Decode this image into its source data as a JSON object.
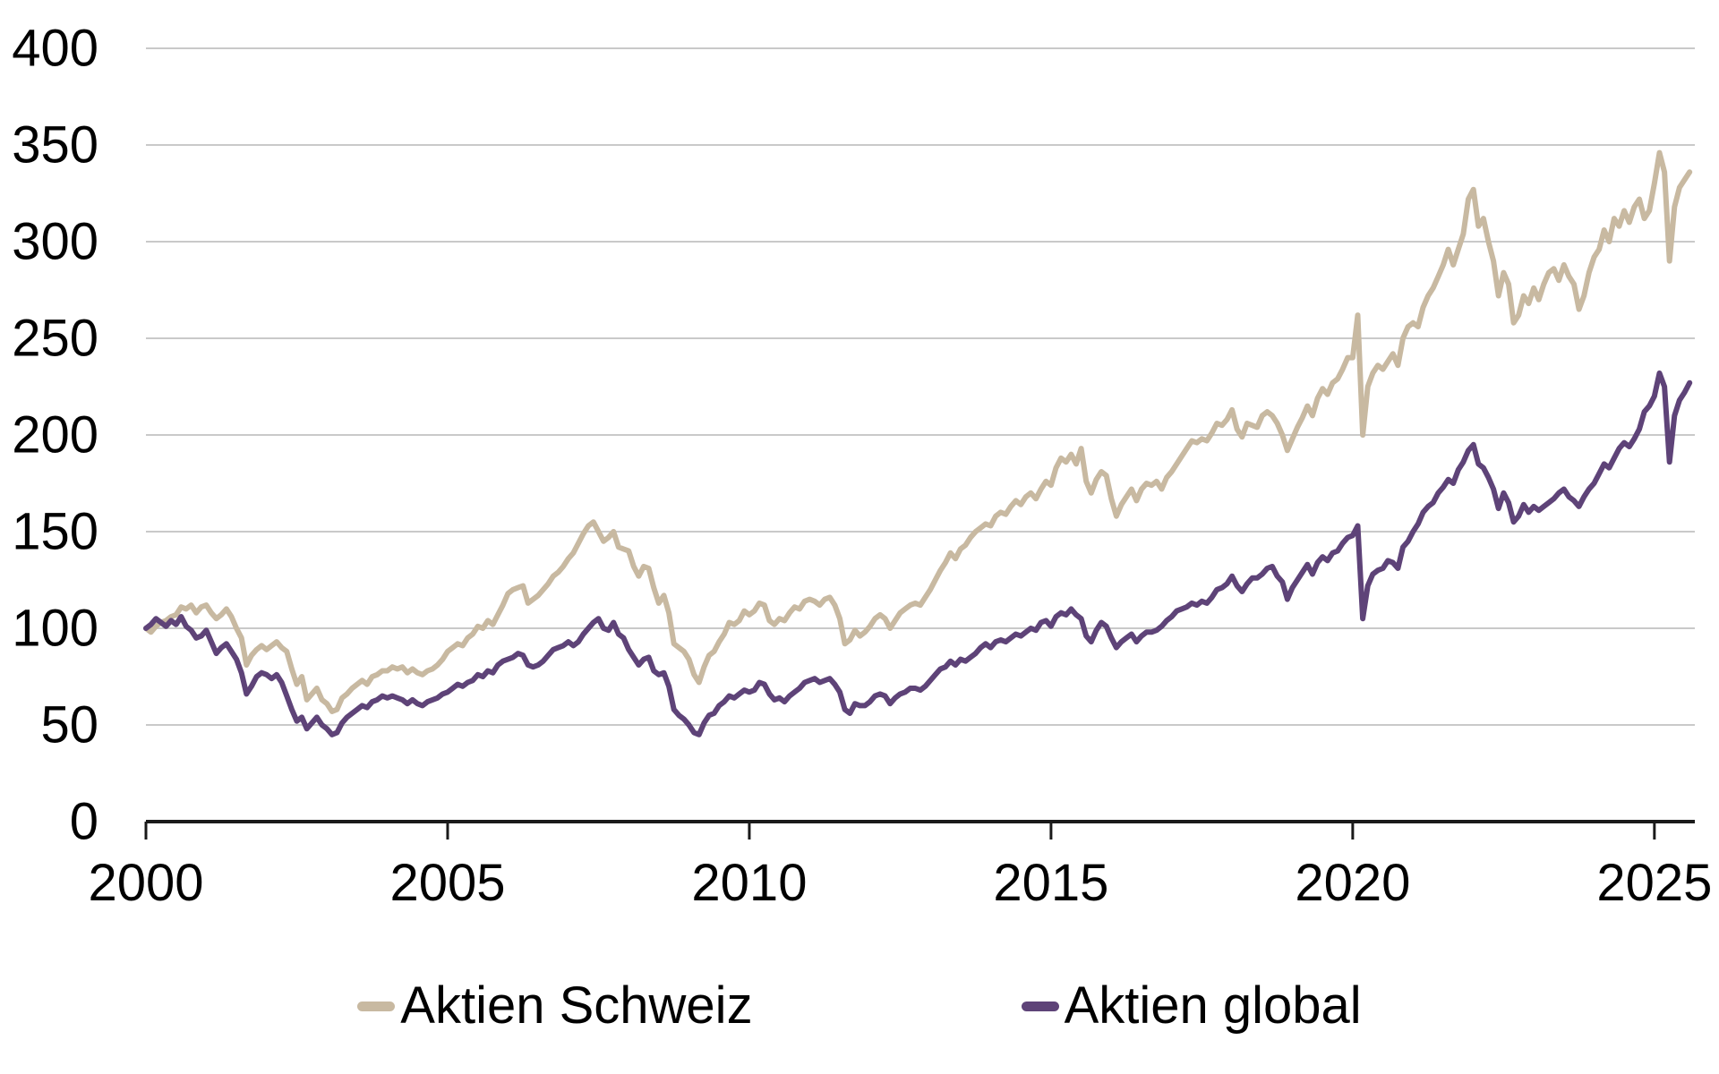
{
  "chart_data": {
    "type": "line",
    "title": "",
    "xlabel": "",
    "ylabel": "",
    "x_axis": {
      "min": 2000,
      "max": 2025.67,
      "ticks": [
        2000,
        2005,
        2010,
        2015,
        2020,
        2025
      ]
    },
    "y_axis": {
      "min": 0,
      "max": 400,
      "ticks": [
        0,
        50,
        100,
        150,
        200,
        250,
        300,
        350,
        400
      ],
      "gridlines": true
    },
    "x_start_year": 2000,
    "points_per_year": 12,
    "legend_position": "bottom",
    "colors": {
      "grid": "#c9c9c9",
      "axis": "#1a1a1a",
      "text": "#000000",
      "background": "#ffffff"
    },
    "series": [
      {
        "name": "Aktien Schweiz",
        "color": "#c8b9a1",
        "values": [
          100,
          98,
          101,
          103,
          104,
          106,
          107,
          111,
          110,
          112,
          108,
          111,
          112,
          108,
          105,
          107,
          110,
          106,
          100,
          95,
          81,
          86,
          89,
          91,
          89,
          91,
          93,
          90,
          88,
          79,
          71,
          75,
          63,
          66,
          69,
          63,
          61,
          57,
          58,
          64,
          66,
          69,
          71,
          73,
          71,
          75,
          76,
          78,
          78,
          80,
          79,
          80,
          77,
          79,
          77,
          76,
          78,
          79,
          81,
          84,
          88,
          90,
          92,
          91,
          95,
          97,
          101,
          100,
          104,
          102,
          107,
          112,
          118,
          120,
          121,
          122,
          113,
          115,
          117,
          120,
          123,
          127,
          129,
          132,
          136,
          139,
          144,
          149,
          153,
          155,
          150,
          145,
          147,
          150,
          142,
          141,
          140,
          132,
          127,
          132,
          131,
          121,
          113,
          117,
          108,
          92,
          90,
          88,
          84,
          76,
          72,
          80,
          86,
          88,
          93,
          97,
          103,
          102,
          104,
          109,
          107,
          109,
          113,
          112,
          104,
          102,
          105,
          104,
          108,
          111,
          110,
          114,
          115,
          114,
          112,
          115,
          116,
          112,
          105,
          92,
          94,
          99,
          96,
          98,
          101,
          105,
          107,
          105,
          100,
          104,
          108,
          110,
          112,
          113,
          112,
          116,
          120,
          125,
          130,
          134,
          139,
          136,
          141,
          143,
          147,
          150,
          152,
          154,
          153,
          158,
          160,
          159,
          163,
          166,
          164,
          168,
          170,
          167,
          172,
          176,
          174,
          183,
          188,
          186,
          190,
          185,
          193,
          176,
          170,
          177,
          181,
          179,
          167,
          158,
          164,
          168,
          172,
          166,
          172,
          175,
          174,
          176,
          172,
          178,
          181,
          185,
          189,
          193,
          197,
          196,
          198,
          197,
          201,
          206,
          205,
          208,
          213,
          203,
          199,
          206,
          205,
          204,
          210,
          212,
          210,
          206,
          200,
          192,
          198,
          204,
          209,
          215,
          210,
          219,
          224,
          221,
          227,
          229,
          234,
          240,
          240,
          262,
          200,
          225,
          232,
          236,
          234,
          238,
          242,
          236,
          250,
          256,
          258,
          256,
          266,
          272,
          276,
          282,
          288,
          296,
          288,
          296,
          304,
          322,
          327,
          308,
          312,
          300,
          290,
          272,
          284,
          278,
          258,
          262,
          272,
          268,
          276,
          270,
          278,
          284,
          286,
          280,
          288,
          282,
          278,
          265,
          272,
          284,
          292,
          296,
          306,
          300,
          312,
          308,
          316,
          310,
          318,
          322,
          312,
          316,
          330,
          346,
          336,
          290,
          318,
          328,
          332,
          336
        ]
      },
      {
        "name": "Aktien global",
        "color": "#5e4378",
        "values": [
          100,
          102,
          105,
          103,
          101,
          104,
          102,
          106,
          101,
          99,
          95,
          96,
          99,
          93,
          87,
          90,
          92,
          88,
          84,
          77,
          66,
          70,
          75,
          77,
          76,
          74,
          76,
          72,
          65,
          58,
          52,
          54,
          48,
          51,
          54,
          50,
          48,
          45,
          46,
          51,
          54,
          56,
          58,
          60,
          59,
          62,
          63,
          65,
          64,
          65,
          64,
          63,
          61,
          63,
          61,
          60,
          62,
          63,
          64,
          66,
          67,
          69,
          71,
          70,
          72,
          73,
          76,
          75,
          78,
          77,
          81,
          83,
          84,
          85,
          87,
          86,
          81,
          80,
          81,
          83,
          86,
          89,
          90,
          91,
          93,
          91,
          93,
          97,
          100,
          103,
          105,
          100,
          99,
          103,
          97,
          95,
          89,
          85,
          81,
          84,
          85,
          78,
          76,
          77,
          70,
          58,
          55,
          53,
          50,
          46,
          45,
          51,
          55,
          56,
          60,
          62,
          65,
          64,
          66,
          68,
          67,
          68,
          72,
          71,
          66,
          63,
          64,
          62,
          65,
          67,
          69,
          72,
          73,
          74,
          72,
          73,
          74,
          71,
          67,
          58,
          56,
          61,
          60,
          60,
          62,
          65,
          66,
          65,
          61,
          64,
          66,
          67,
          69,
          69,
          68,
          70,
          73,
          76,
          79,
          80,
          83,
          81,
          84,
          83,
          85,
          87,
          90,
          92,
          90,
          93,
          94,
          93,
          95,
          97,
          96,
          98,
          100,
          99,
          103,
          104,
          101,
          106,
          108,
          107,
          110,
          107,
          105,
          96,
          93,
          99,
          103,
          101,
          95,
          90,
          93,
          95,
          97,
          93,
          96,
          98,
          98,
          99,
          101,
          104,
          106,
          109,
          110,
          111,
          113,
          112,
          114,
          113,
          116,
          120,
          121,
          123,
          127,
          122,
          119,
          123,
          126,
          126,
          128,
          131,
          132,
          127,
          124,
          115,
          121,
          125,
          129,
          133,
          128,
          134,
          137,
          135,
          139,
          140,
          144,
          147,
          148,
          153,
          105,
          122,
          128,
          130,
          131,
          135,
          134,
          131,
          142,
          145,
          150,
          154,
          160,
          163,
          165,
          170,
          173,
          177,
          175,
          182,
          186,
          192,
          195,
          185,
          183,
          178,
          172,
          162,
          170,
          165,
          155,
          158,
          164,
          160,
          163,
          161,
          163,
          165,
          167,
          170,
          172,
          168,
          166,
          163,
          168,
          172,
          175,
          180,
          185,
          183,
          188,
          193,
          196,
          194,
          198,
          203,
          212,
          215,
          220,
          232,
          225,
          186,
          210,
          218,
          222,
          227
        ]
      }
    ]
  }
}
